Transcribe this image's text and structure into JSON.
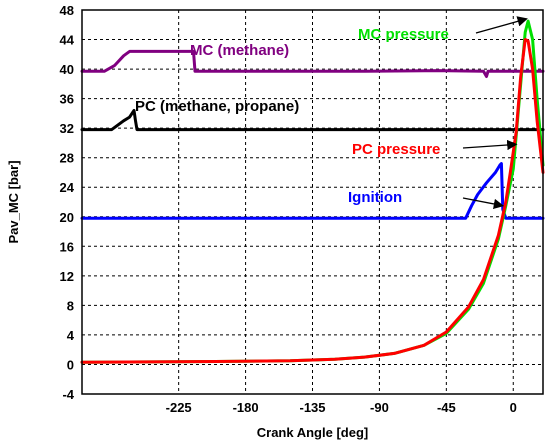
{
  "chart_data": {
    "type": "line",
    "xlabel": "Crank Angle [deg]",
    "ylabel": "Pav_MC [bar]",
    "xlim": [
      -290,
      20
    ],
    "ylim": [
      -4,
      48
    ],
    "xticks": [
      -225,
      -180,
      -135,
      -90,
      -45,
      0
    ],
    "yticks": [
      -4,
      0,
      4,
      8,
      12,
      16,
      20,
      24,
      28,
      32,
      36,
      40,
      44,
      48
    ],
    "grid": true,
    "series": [
      {
        "name": "MC (methane)",
        "color": "#800080",
        "x": [
          -290,
          -275,
          -268,
          -262,
          -258,
          -245,
          -215,
          -214,
          -200,
          -150,
          -100,
          -50,
          -20,
          -18,
          -17,
          0,
          20
        ],
        "y": [
          39.7,
          39.7,
          40.5,
          41.8,
          42.4,
          42.4,
          42.4,
          39.7,
          39.7,
          39.7,
          39.7,
          39.8,
          39.7,
          39.0,
          39.7,
          39.7,
          39.7
        ]
      },
      {
        "name": "PC (methane, propane)",
        "color": "#000000",
        "x": [
          -290,
          -270,
          -262,
          -258,
          -255,
          -254,
          -253,
          -200,
          -100,
          0,
          20
        ],
        "y": [
          31.8,
          31.8,
          33.0,
          33.5,
          34.4,
          33.0,
          31.8,
          31.8,
          31.8,
          31.8,
          31.8
        ]
      },
      {
        "name": "Ignition",
        "color": "#0000FF",
        "x": [
          -290,
          -200,
          -32,
          -28,
          -24,
          -18,
          -12,
          -9,
          -8,
          -7,
          -5,
          20
        ],
        "y": [
          19.8,
          19.8,
          19.8,
          21.5,
          23.0,
          24.6,
          26.0,
          27.0,
          27.2,
          21.0,
          19.8,
          19.8
        ]
      },
      {
        "name": "MC pressure",
        "color": "#00E000",
        "x": [
          -290,
          -200,
          -150,
          -120,
          -100,
          -80,
          -60,
          -45,
          -30,
          -20,
          -10,
          -5,
          0,
          5,
          8,
          10,
          13,
          16,
          20
        ],
        "y": [
          0.3,
          0.4,
          0.5,
          0.7,
          1.0,
          1.5,
          2.6,
          4.2,
          7.5,
          11.0,
          17.0,
          21.5,
          26.5,
          38.0,
          45.0,
          46.5,
          44.0,
          36.0,
          27.0
        ]
      },
      {
        "name": "PC pressure",
        "color": "#FF0000",
        "x": [
          -290,
          -200,
          -150,
          -120,
          -100,
          -80,
          -60,
          -45,
          -30,
          -20,
          -10,
          -5,
          -2,
          0,
          2,
          5,
          8,
          10,
          13,
          16,
          20
        ],
        "y": [
          0.3,
          0.4,
          0.5,
          0.7,
          1.0,
          1.5,
          2.6,
          4.4,
          7.8,
          11.5,
          17.5,
          22.0,
          26.0,
          28.8,
          31.5,
          39.0,
          44.0,
          43.8,
          40.0,
          33.0,
          26.0
        ]
      }
    ],
    "annotations": [
      {
        "text": "MC (methane)",
        "color": "#800080"
      },
      {
        "text": "PC (methane, propane)",
        "color": "#000000"
      },
      {
        "text": "MC pressure",
        "color": "#00E000"
      },
      {
        "text": "PC pressure",
        "color": "#FF0000"
      },
      {
        "text": "Ignition",
        "color": "#0000FF"
      }
    ]
  }
}
